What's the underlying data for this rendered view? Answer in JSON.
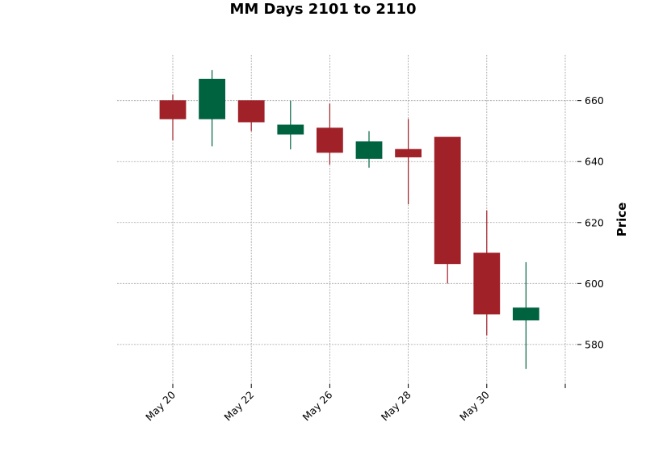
{
  "chart_data": {
    "type": "candlestick",
    "title": "MM Days 2101 to 2110",
    "xlabel": "",
    "ylabel": "Price",
    "ylim": [
      567,
      675
    ],
    "yticks": [
      580,
      600,
      620,
      640,
      660
    ],
    "grid": true,
    "legend": "none",
    "colors": {
      "up": "#006340",
      "down": "#a02128"
    },
    "candles": [
      {
        "open": 660,
        "high": 662,
        "low": 647,
        "close": 654
      },
      {
        "open": 654,
        "high": 670,
        "low": 645,
        "close": 667
      },
      {
        "open": 660,
        "high": 660,
        "low": 650,
        "close": 653
      },
      {
        "open": 649,
        "high": 660,
        "low": 644,
        "close": 652
      },
      {
        "open": 651,
        "high": 659,
        "low": 639,
        "close": 643
      },
      {
        "open": 641,
        "high": 650,
        "low": 638,
        "close": 646.5
      },
      {
        "open": 644,
        "high": 654,
        "low": 626,
        "close": 641.5
      },
      {
        "open": 648,
        "high": 648,
        "low": 600,
        "close": 606.5
      },
      {
        "open": 610,
        "high": 624,
        "low": 583,
        "close": 590
      },
      {
        "open": 588,
        "high": 607,
        "low": 572,
        "close": 592
      }
    ],
    "xticks": [
      {
        "index": 0,
        "label": "May 20"
      },
      {
        "index": 2,
        "label": "May 22"
      },
      {
        "index": 4,
        "label": "May 26"
      },
      {
        "index": 6,
        "label": "May 28"
      },
      {
        "index": 8,
        "label": "May 30"
      },
      {
        "index": 10,
        "label": ""
      }
    ]
  }
}
